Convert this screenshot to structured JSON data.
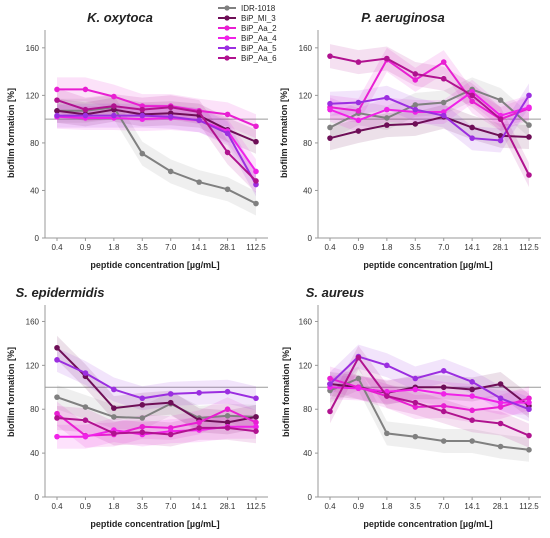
{
  "legend": {
    "entries": [
      {
        "name": "IDR-1018",
        "color": "#808080"
      },
      {
        "name": "BiP_MI_3",
        "color": "#6e0e57"
      },
      {
        "name": "BiP_Aa_2",
        "color": "#e81fd2"
      },
      {
        "name": "BiP_Aa_4",
        "color": "#f022e8"
      },
      {
        "name": "BiP_Aa_5",
        "color": "#9b2ee0"
      },
      {
        "name": "BiP_Aa_6",
        "color": "#b0128f"
      }
    ]
  },
  "chart_data": [
    {
      "type": "line",
      "title": "K. oxytoca",
      "xlabel": "peptide concentration [µg/mL]",
      "ylabel": "biofilm formation [%]",
      "categories": [
        "0.4",
        "0.9",
        "1.8",
        "3.5",
        "7.0",
        "14.1",
        "28.1",
        "112.5"
      ],
      "ylim": [
        0,
        175
      ],
      "yticks": [
        0,
        40,
        80,
        120,
        160
      ],
      "reference_line": 100,
      "series": [
        {
          "name": "IDR-1018",
          "values": [
            107,
            107,
            110,
            71,
            56,
            47,
            41,
            29
          ]
        },
        {
          "name": "BiP_MI_3",
          "values": [
            107,
            104,
            108,
            104,
            105,
            103,
            91,
            81
          ]
        },
        {
          "name": "BiP_Aa_2",
          "values": [
            125,
            125,
            119,
            111,
            111,
            107,
            104,
            94
          ]
        },
        {
          "name": "BiP_Aa_4",
          "values": [
            102,
            101,
            101,
            100,
            101,
            99,
            90,
            56
          ]
        },
        {
          "name": "BiP_Aa_5",
          "values": [
            103,
            103,
            103,
            103,
            102,
            99,
            88,
            45
          ]
        },
        {
          "name": "BiP_Aa_6",
          "values": [
            116,
            108,
            111,
            108,
            110,
            106,
            72,
            48
          ]
        }
      ]
    },
    {
      "type": "line",
      "title": "P. aeruginosa",
      "xlabel": "peptide concentration [µg/mL]",
      "ylabel": "biofilm formation [%]",
      "categories": [
        "0.4",
        "0.9",
        "1.8",
        "3.5",
        "7.0",
        "14.1",
        "28.1",
        "112.5"
      ],
      "ylim": [
        0,
        175
      ],
      "yticks": [
        0,
        40,
        80,
        120,
        160
      ],
      "reference_line": 100,
      "series": [
        {
          "name": "IDR-1018",
          "values": [
            93,
            105,
            101,
            112,
            114,
            125,
            116,
            95
          ]
        },
        {
          "name": "BiP_MI_3",
          "values": [
            84,
            90,
            95,
            96,
            102,
            93,
            86,
            85
          ]
        },
        {
          "name": "BiP_Aa_2",
          "values": [
            110,
            107,
            150,
            133,
            148,
            115,
            100,
            109
          ]
        },
        {
          "name": "BiP_Aa_4",
          "values": [
            108,
            99,
            108,
            106,
            106,
            123,
            103,
            110
          ]
        },
        {
          "name": "BiP_Aa_5",
          "values": [
            113,
            114,
            118,
            108,
            103,
            84,
            82,
            120
          ]
        },
        {
          "name": "BiP_Aa_6",
          "values": [
            153,
            148,
            151,
            138,
            134,
            120,
            100,
            53
          ]
        }
      ]
    },
    {
      "type": "line",
      "title": "S. epidermidis",
      "xlabel": "peptide concentration [µg/mL]",
      "ylabel": "biofilm formation [%]",
      "categories": [
        "0.4",
        "0.9",
        "1.8",
        "3.5",
        "7.0",
        "14.1",
        "28.1",
        "112.5"
      ],
      "ylim": [
        0,
        175
      ],
      "yticks": [
        0,
        40,
        80,
        120,
        160
      ],
      "reference_line": 100,
      "series": [
        {
          "name": "IDR-1018",
          "values": [
            91,
            82,
            73,
            72,
            85,
            72,
            74,
            73
          ]
        },
        {
          "name": "BiP_MI_3",
          "values": [
            136,
            110,
            81,
            84,
            86,
            70,
            68,
            73
          ]
        },
        {
          "name": "BiP_Aa_2",
          "values": [
            76,
            56,
            57,
            64,
            63,
            68,
            80,
            68
          ]
        },
        {
          "name": "BiP_Aa_4",
          "values": [
            55,
            55,
            61,
            57,
            60,
            61,
            64,
            64
          ]
        },
        {
          "name": "BiP_Aa_5",
          "values": [
            125,
            113,
            98,
            90,
            94,
            95,
            96,
            90
          ]
        },
        {
          "name": "BiP_Aa_6",
          "values": [
            72,
            70,
            58,
            59,
            57,
            63,
            63,
            60
          ]
        }
      ]
    },
    {
      "type": "line",
      "title": "S. aureus",
      "xlabel": "peptide concentration [µg/mL]",
      "ylabel": "biofilm formation [%]",
      "categories": [
        "0.4",
        "0.9",
        "1.8",
        "3.5",
        "7.0",
        "14.1",
        "28.1",
        "112.5"
      ],
      "ylim": [
        0,
        175
      ],
      "yticks": [
        0,
        40,
        80,
        120,
        160
      ],
      "reference_line": 100,
      "series": [
        {
          "name": "IDR-1018",
          "values": [
            97,
            108,
            58,
            55,
            51,
            51,
            46,
            43
          ]
        },
        {
          "name": "BiP_MI_3",
          "values": [
            103,
            100,
            95,
            100,
            100,
            98,
            103,
            83
          ]
        },
        {
          "name": "BiP_Aa_2",
          "values": [
            108,
            100,
            92,
            82,
            83,
            79,
            82,
            90
          ]
        },
        {
          "name": "BiP_Aa_4",
          "values": [
            100,
            99,
            96,
            98,
            94,
            92,
            86,
            86
          ]
        },
        {
          "name": "BiP_Aa_5",
          "values": [
            103,
            128,
            120,
            108,
            115,
            105,
            90,
            80
          ]
        },
        {
          "name": "BiP_Aa_6",
          "values": [
            78,
            127,
            92,
            86,
            78,
            70,
            67,
            56
          ]
        }
      ]
    }
  ]
}
